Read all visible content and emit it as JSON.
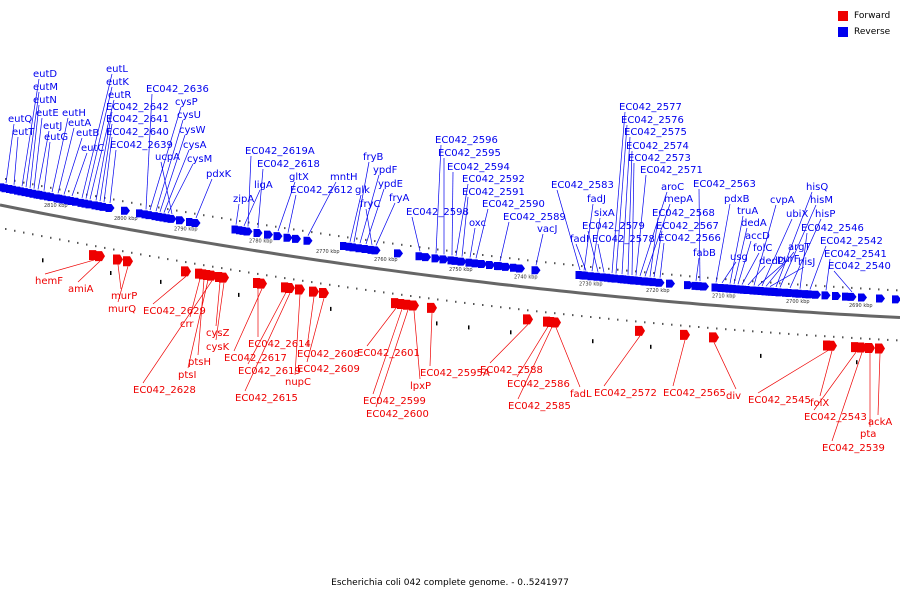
{
  "legend": {
    "forward_label": "Forward",
    "forward_color": "#ee0000",
    "reverse_label": "Reverse",
    "reverse_color": "#0000ee"
  },
  "caption": "Escherichia coli 042 complete genome. - 0..5241977",
  "scale_labels": [
    "2810 kbp",
    "2800 kbp",
    "2790 kbp",
    "2780 kbp",
    "2770 kbp",
    "2760 kbp",
    "2750 kbp",
    "2740 kbp",
    "2730 kbp",
    "2720 kbp",
    "2710 kbp",
    "2700 kbp",
    "2690 kbp"
  ],
  "reverse_genes": [
    "eutQ",
    "eutT",
    "eutD",
    "eutM",
    "eutN",
    "eutE",
    "eutJ",
    "eutG",
    "eutH",
    "eutA",
    "eutB",
    "eutC",
    "eutL",
    "eutK",
    "eutR",
    "EC042_2642",
    "EC042_2641",
    "EC042_2640",
    "EC042_2639",
    "EC042_2636",
    "cysP",
    "cysU",
    "cysW",
    "cysA",
    "cysM",
    "ucpA",
    "pdxK",
    "zipA",
    "ligA",
    "EC042_2619A",
    "EC042_2618",
    "gltX",
    "EC042_2612",
    "mntH",
    "glk",
    "fryB",
    "ypdF",
    "ypdE",
    "fryC",
    "fryA",
    "EC042_2598",
    "EC042_2596",
    "EC042_2595",
    "EC042_2594",
    "EC042_2592",
    "EC042_2591",
    "oxc",
    "EC042_2590",
    "EC042_2589",
    "vacJ",
    "EC042_2583",
    "fadJ",
    "fadI",
    "sixA",
    "EC042_2579",
    "EC042_2578",
    "EC042_2577",
    "EC042_2576",
    "EC042_2575",
    "EC042_2574",
    "EC042_2573",
    "EC042_2571",
    "aroC",
    "mepA",
    "EC042_2568",
    "EC042_2567",
    "EC042_2566",
    "fabB",
    "EC042_2563",
    "pdxB",
    "usg",
    "truA",
    "dedA",
    "accD",
    "folC",
    "dedD",
    "cvpA",
    "purF",
    "ubiX",
    "argT",
    "hisJ",
    "hisQ",
    "hisM",
    "hisP",
    "EC042_2546",
    "EC042_2542",
    "EC042_2541",
    "EC042_2540"
  ],
  "forward_genes": [
    "hemF",
    "amiA",
    "murP",
    "murQ",
    "EC042_2629",
    "crr",
    "ptsH",
    "ptsI",
    "EC042_2628",
    "cysZ",
    "cysK",
    "EC042_2614",
    "EC042_2617",
    "EC042_2619",
    "EC042_2615",
    "nupC",
    "EC042_2608",
    "EC042_2609",
    "EC042_2601",
    "EC042_2599",
    "EC042_2600",
    "lpxP",
    "EC042_2595A",
    "EC042_2588",
    "EC042_2586",
    "EC042_2585",
    "fadL",
    "EC042_2572",
    "EC042_2565",
    "div",
    "EC042_2545",
    "folX",
    "EC042_2543",
    "EC042_2539",
    "pta",
    "ackA"
  ]
}
